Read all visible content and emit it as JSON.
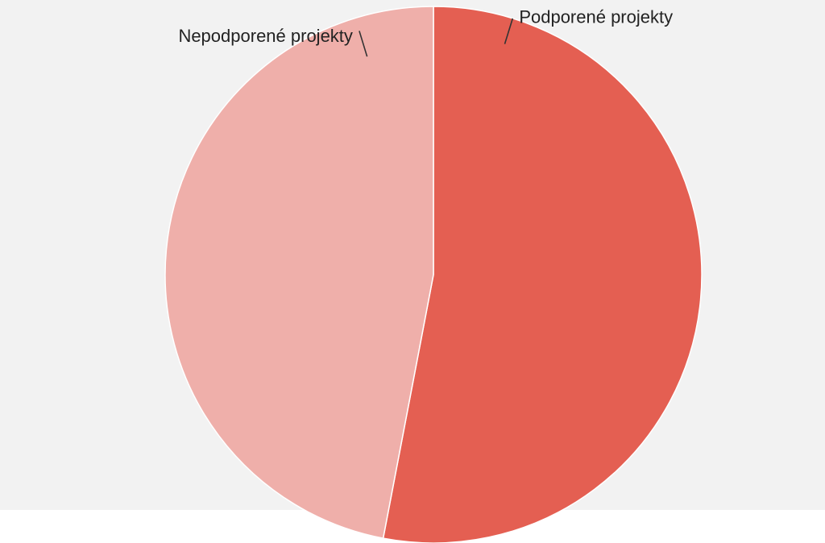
{
  "chart_data": {
    "type": "pie",
    "title": "",
    "start_angle_deg": 0,
    "direction": "clockwise",
    "slices": [
      {
        "label": "Podporené projekty",
        "value": 53,
        "color": "#e45f52"
      },
      {
        "label": "Nepodporené projekty",
        "value": 47,
        "color": "#efafaa"
      }
    ],
    "legend": "none",
    "label_placement": "outside-with-leader-lines"
  },
  "colors": {
    "plot_background": "#f2f2f2",
    "page_background": "#ffffff",
    "slice_border": "#ffffff"
  }
}
